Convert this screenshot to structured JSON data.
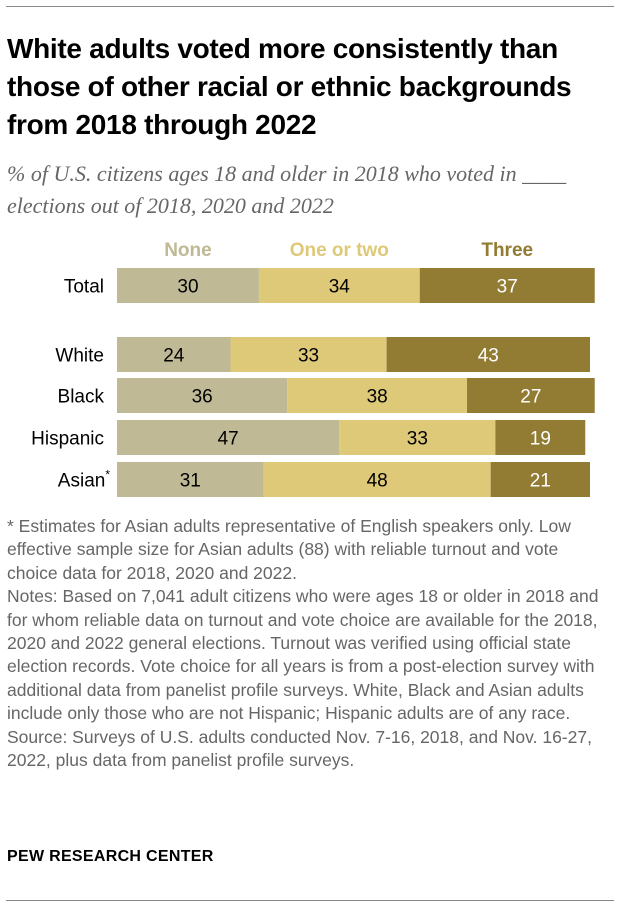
{
  "title": "White adults voted more consistently than those of other racial or ethnic backgrounds from 2018 through 2022",
  "subtitle": "% of U.S. citizens ages 18 and older in 2018 who voted in ____ elections out of 2018, 2020 and 2022",
  "chart_data": {
    "type": "bar",
    "orientation": "horizontal",
    "stacked": true,
    "categories": [
      "Total",
      "White",
      "Black",
      "Hispanic",
      "Asian*"
    ],
    "series": [
      {
        "name": "None",
        "color": "#BFB995",
        "values": [
          30,
          24,
          36,
          47,
          31
        ]
      },
      {
        "name": "One or two",
        "color": "#DDC978",
        "values": [
          34,
          33,
          38,
          33,
          48
        ]
      },
      {
        "name": "Three",
        "color": "#927B33",
        "values": [
          37,
          43,
          27,
          19,
          21
        ]
      }
    ],
    "legend_position": "top",
    "grid": false
  },
  "notes": [
    "* Estimates for Asian adults representative of English speakers only. Low effective sample size for Asian adults (88) with reliable turnout and vote choice data for 2018, 2020 and 2022.",
    "Notes: Based on 7,041 adult citizens who were ages 18 or older in 2018 and for whom reliable data on turnout and vote choice are available for the 2018, 2020 and 2022 general elections. Turnout was verified using official state election records. Vote choice for all years is from a post-election survey with additional data from panelist profile surveys. White, Black and Asian adults include only those who are not Hispanic; Hispanic adults are of any race.",
    "Source: Surveys of U.S. adults conducted Nov. 7-16, 2018, and Nov. 16-27, 2022, plus data from panelist profile surveys."
  ],
  "brand": "PEW RESEARCH CENTER"
}
